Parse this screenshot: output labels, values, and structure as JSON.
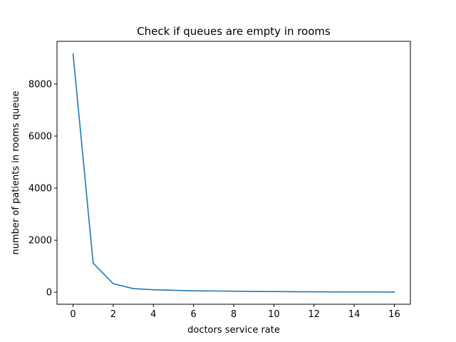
{
  "chart_data": {
    "type": "line",
    "title": "Check if queues are empty in rooms",
    "xlabel": "doctors service rate",
    "ylabel": "number of patients in rooms  queue",
    "xlim": [
      -0.8,
      16.8
    ],
    "ylim": [
      -460,
      9640
    ],
    "xticks": [
      0,
      2,
      4,
      6,
      8,
      10,
      12,
      14,
      16
    ],
    "yticks": [
      0,
      2000,
      4000,
      6000,
      8000
    ],
    "grid": false,
    "series": [
      {
        "color": "#1f77b4",
        "x": [
          0,
          1,
          2,
          3,
          4,
          5,
          6,
          7,
          8,
          9,
          10,
          11,
          12,
          13,
          14,
          15,
          16
        ],
        "y": [
          9160,
          1120,
          330,
          140,
          95,
          75,
          55,
          50,
          40,
          32,
          28,
          22,
          18,
          14,
          14,
          12,
          8
        ]
      }
    ]
  }
}
